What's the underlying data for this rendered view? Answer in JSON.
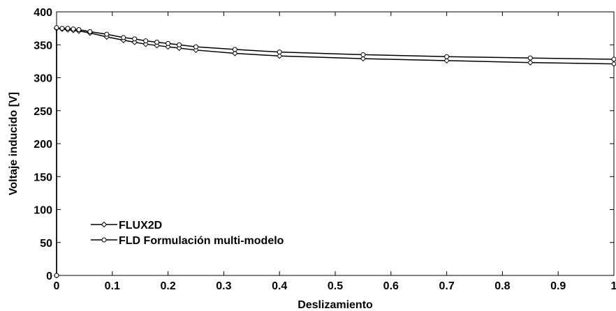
{
  "chart_data": {
    "type": "line",
    "xlabel": "Deslizamiento",
    "ylabel": "Voltaje inducido [V]",
    "xlim": [
      0,
      1
    ],
    "ylim": [
      0,
      400
    ],
    "xticks": [
      "0",
      "0.1",
      "0.2",
      "0.3",
      "0.4",
      "0.5",
      "0.6",
      "0.7",
      "0.8",
      "0.9",
      "1"
    ],
    "yticks": [
      "0",
      "50",
      "100",
      "150",
      "200",
      "250",
      "300",
      "350",
      "400"
    ],
    "grid": false,
    "legend_position": "bottom-left",
    "series": [
      {
        "name": "FLUX2D",
        "marker": "diamond",
        "color": "#000000",
        "x": [
          0,
          0,
          0.01,
          0.02,
          0.03,
          0.04,
          0.06,
          0.09,
          0.12,
          0.14,
          0.16,
          0.18,
          0.2,
          0.22,
          0.25,
          0.32,
          0.4,
          0.55,
          0.7,
          0.85,
          1.0
        ],
        "y": [
          0,
          375,
          374,
          373,
          372,
          371,
          368,
          362,
          357,
          354,
          351,
          349,
          347,
          345,
          342,
          337,
          333,
          329,
          326,
          323,
          321
        ]
      },
      {
        "name": "FLD Formulación multi-modelo",
        "marker": "circle",
        "color": "#000000",
        "x": [
          0,
          0,
          0.01,
          0.02,
          0.03,
          0.04,
          0.06,
          0.09,
          0.12,
          0.14,
          0.16,
          0.18,
          0.2,
          0.22,
          0.25,
          0.32,
          0.4,
          0.55,
          0.7,
          0.85,
          1.0
        ],
        "y": [
          0,
          376,
          375,
          375,
          374,
          373,
          370,
          366,
          361,
          359,
          356,
          354,
          352,
          350,
          347,
          343,
          339,
          335,
          332,
          330,
          328
        ]
      }
    ]
  }
}
